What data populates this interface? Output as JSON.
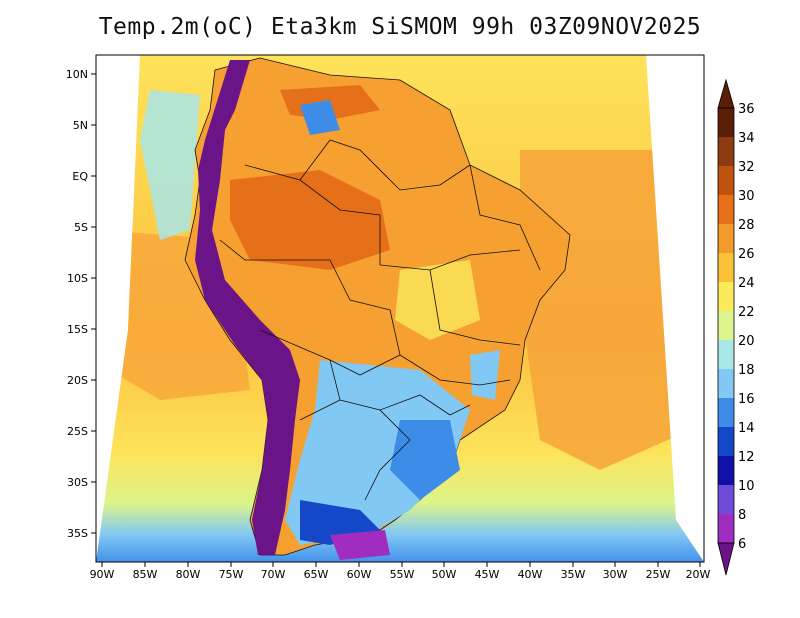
{
  "title": "Temp.2m(oC) Eta3km SiSMOM 99h 03Z09NOV2025",
  "lat_labels": [
    "10N",
    "5N",
    "EQ",
    "5S",
    "10S",
    "15S",
    "20S",
    "25S",
    "30S",
    "35S"
  ],
  "lon_labels": [
    "90W",
    "85W",
    "80W",
    "75W",
    "70W",
    "65W",
    "60W",
    "55W",
    "50W",
    "45W",
    "40W",
    "35W",
    "30W",
    "25W",
    "20W"
  ],
  "colorbar": {
    "levels": [
      "36",
      "34",
      "32",
      "30",
      "28",
      "26",
      "24",
      "22",
      "20",
      "18",
      "16",
      "14",
      "12",
      "10",
      "8",
      "6"
    ],
    "colors": [
      "#5a1e06",
      "#8e3a12",
      "#c05210",
      "#e6701a",
      "#f39a2c",
      "#f9c237",
      "#fde95c",
      "#dbf48c",
      "#a8e6e8",
      "#82c8f4",
      "#3c8ce8",
      "#1448c8",
      "#1010a8",
      "#6e4cd8",
      "#a02cc0",
      "#6a1488"
    ]
  },
  "palette": {
    "ocean_warm": "#fdb73a",
    "ocean_mid": "#fde35a",
    "ocean_cool": "#dbf48c",
    "land_warm": "#f5a030",
    "land_hot": "#e6701a",
    "andes": "#6a1488",
    "cold_south": "#82c8f4"
  }
}
